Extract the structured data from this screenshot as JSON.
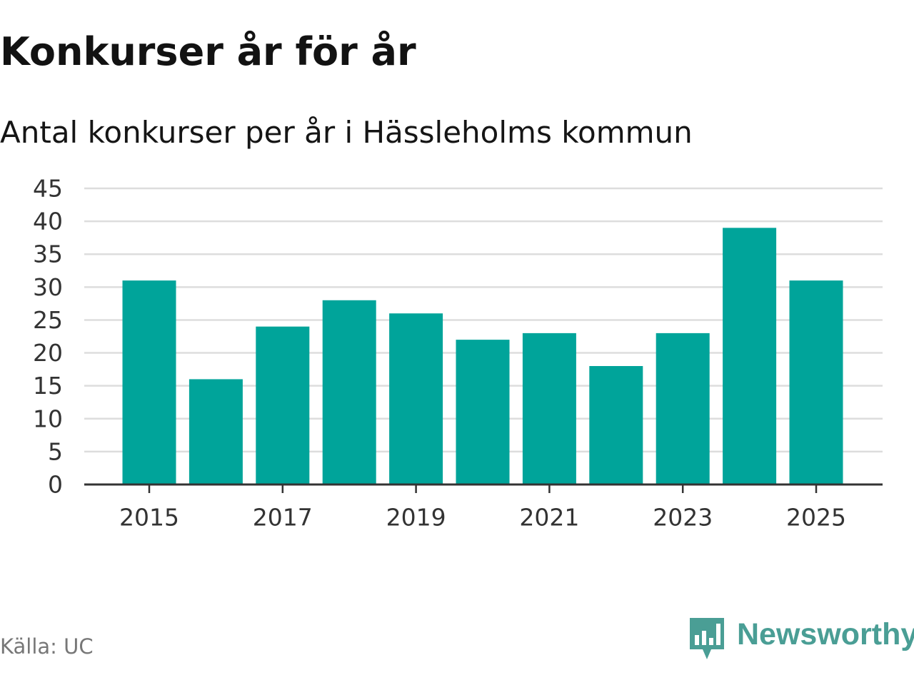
{
  "title": "Konkurser år för år",
  "subtitle": "Antal konkurser per år i Hässleholms kommun",
  "source": "Källa: UC",
  "brand": {
    "name": "Newsworthy",
    "icon": "newsworthy-logo-icon",
    "color": "#4a9e95"
  },
  "colors": {
    "bar": "#00a49a",
    "grid": "#dddddd",
    "axis": "#333333"
  },
  "chart_data": {
    "type": "bar",
    "categories": [
      "2015",
      "2016",
      "2017",
      "2018",
      "2019",
      "2020",
      "2021",
      "2022",
      "2023",
      "2024",
      "2025"
    ],
    "values": [
      31,
      16,
      24,
      28,
      26,
      22,
      23,
      18,
      23,
      39,
      31
    ],
    "x_tick_labels": [
      "2015",
      "2017",
      "2019",
      "2021",
      "2023",
      "2025"
    ],
    "y_ticks": [
      0,
      5,
      10,
      15,
      20,
      25,
      30,
      35,
      40,
      45
    ],
    "ylim": [
      0,
      45
    ],
    "title": "Konkurser år för år",
    "subtitle": "Antal konkurser per år i Hässleholms kommun",
    "xlabel": "",
    "ylabel": "",
    "grid": true,
    "legend": "none"
  }
}
